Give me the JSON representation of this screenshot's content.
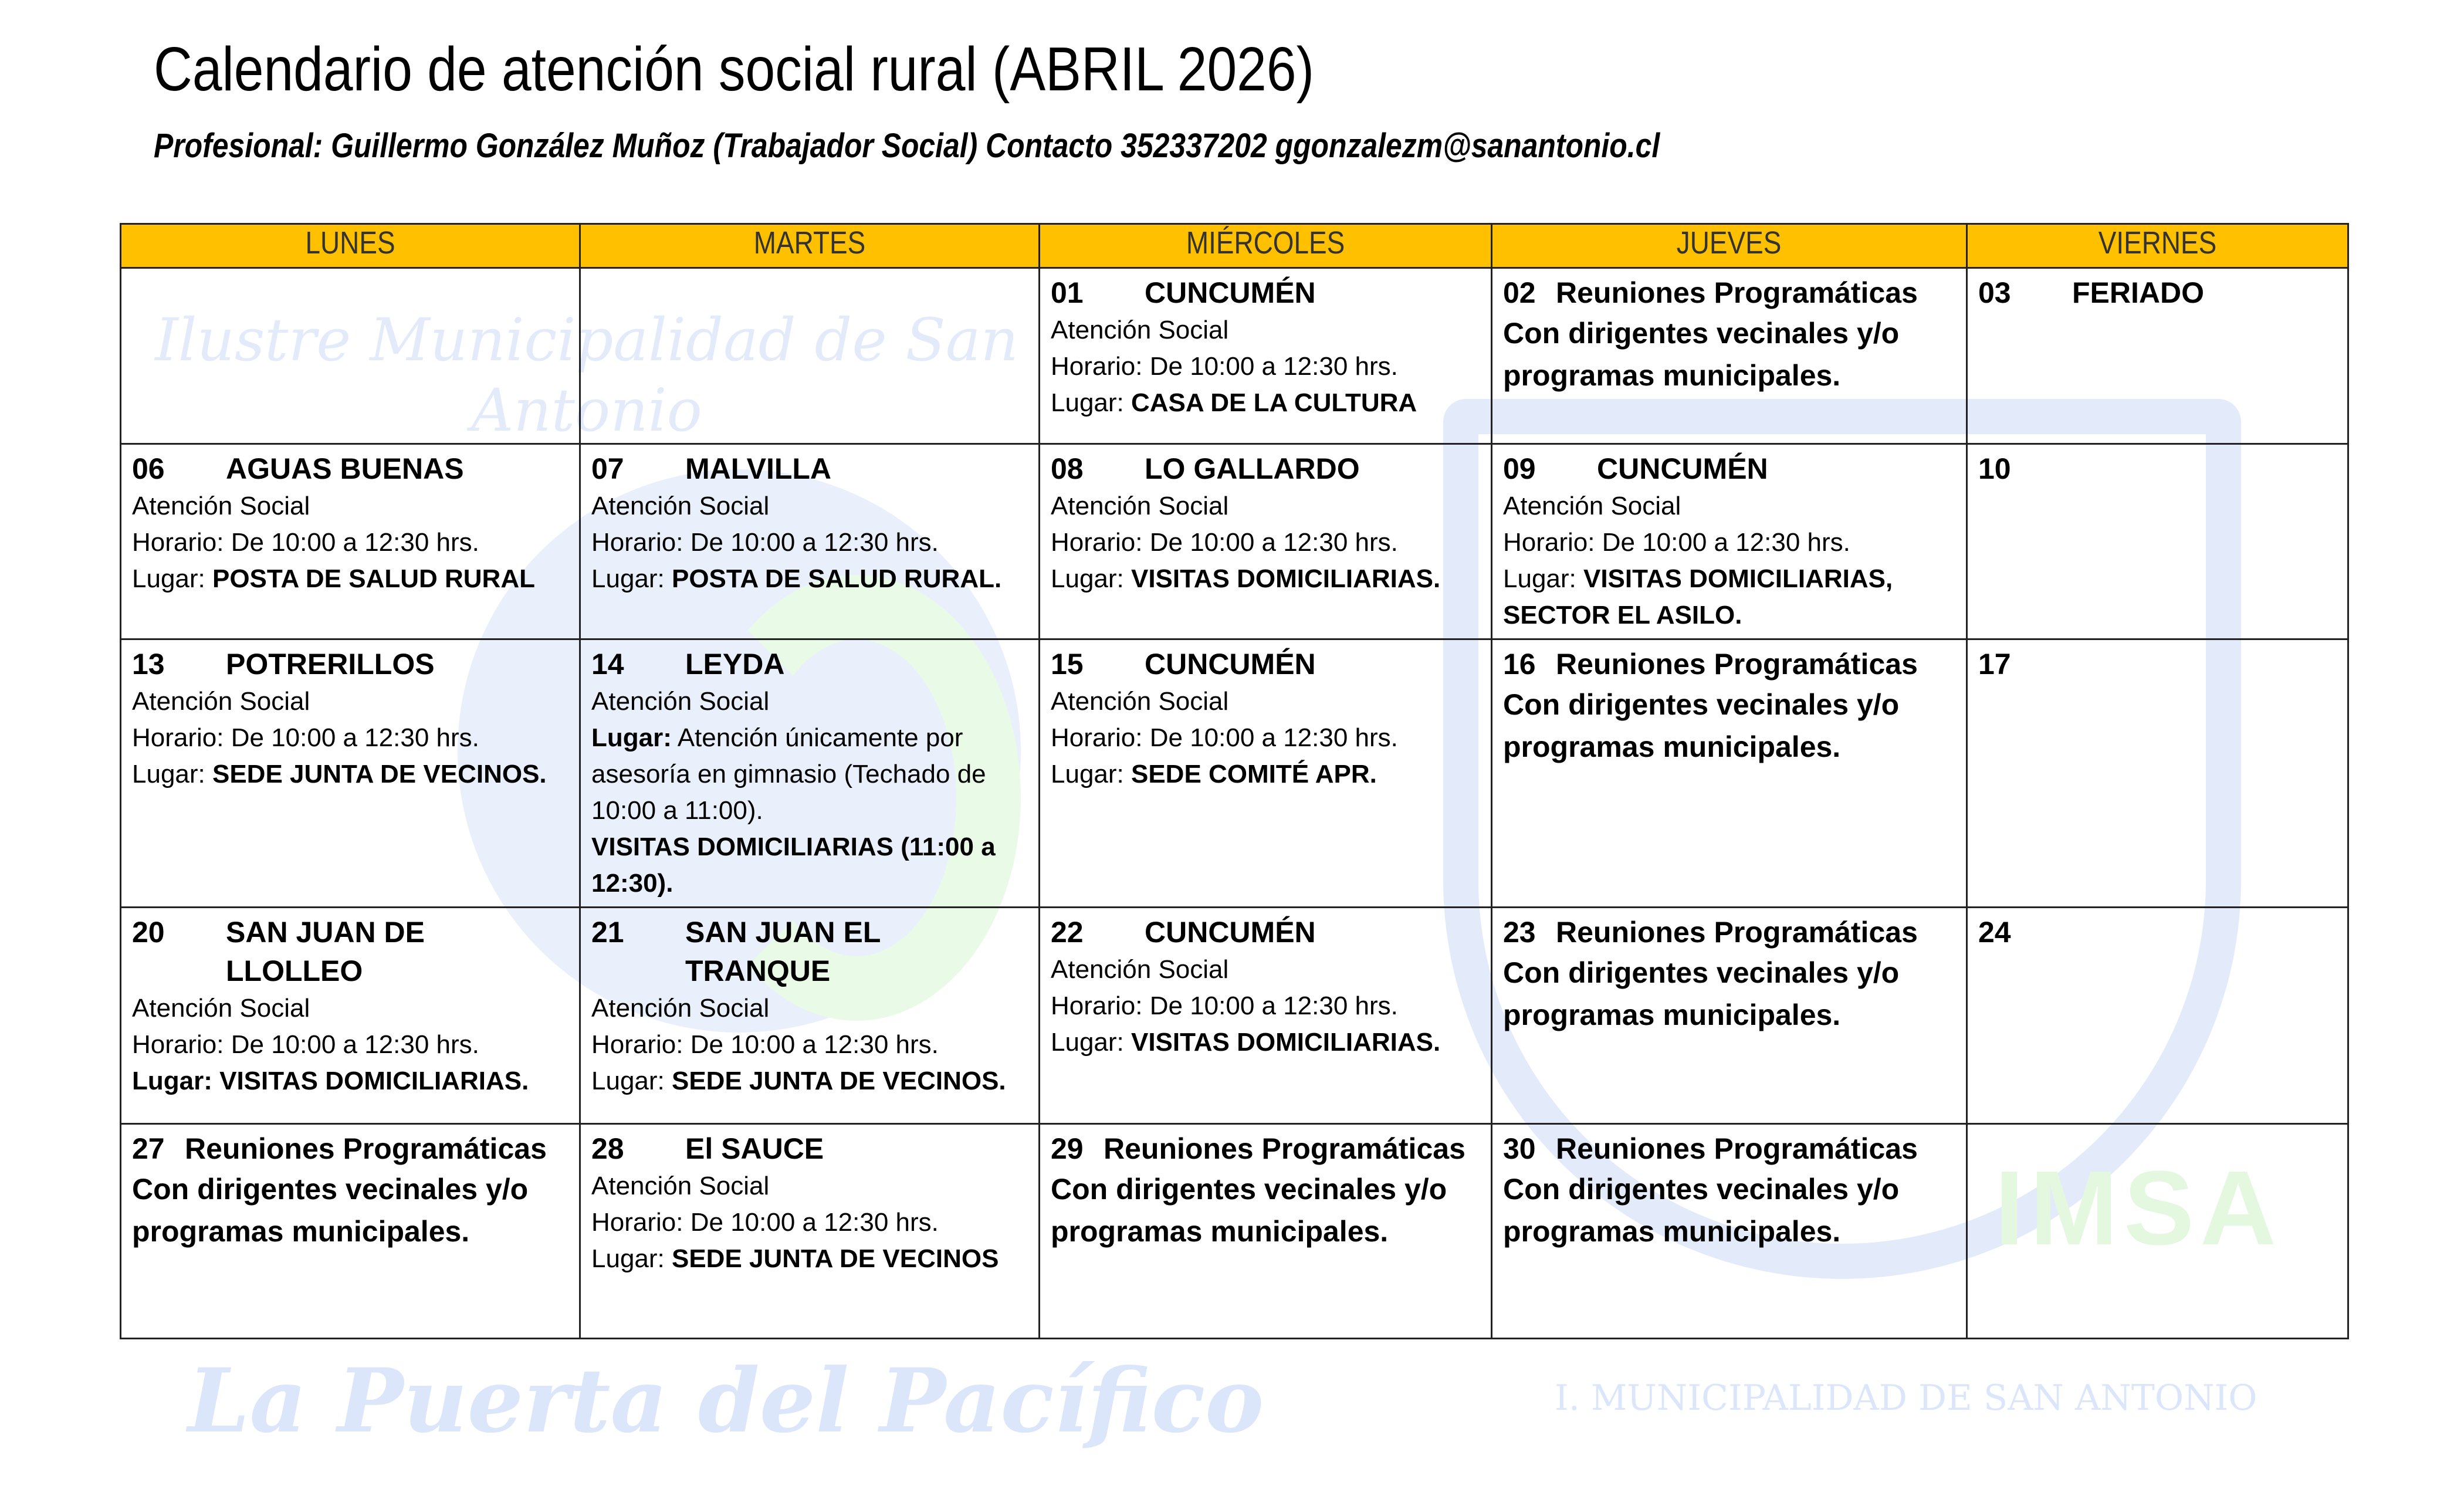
{
  "header": {
    "title": "Calendario de atención social rural (ABRIL 2026)",
    "subtitle": "Profesional: Guillermo González Muñoz (Trabajador Social) Contacto 352337202   ggonzalezm@sanantonio.cl"
  },
  "watermark": {
    "slogan": "La Puerta del Pacífico",
    "arc": "Ilustre Municipalidad de San Antonio",
    "ring": "I. MUNICIPALIDAD DE SAN ANTONIO",
    "logo": "IMSA"
  },
  "colors": {
    "header_bg": "#ffc000",
    "watermark": "#dbe6fb"
  },
  "days": [
    "LUNES",
    "MARTES",
    "MIÉRCOLES",
    "JUEVES",
    "VIERNES"
  ],
  "weeks": [
    [
      {},
      {},
      {
        "day": "01",
        "place": "CUNCUMÉN",
        "lines": [
          [
            {
              "t": "Atención Social"
            }
          ],
          [
            {
              "t": "Horario: De 10:00 a 12:30 hrs."
            }
          ],
          [
            {
              "t": "Lugar:  "
            },
            {
              "t": "CASA DE LA CULTURA",
              "b": true
            }
          ]
        ]
      },
      {
        "day": "02",
        "place": "Reuniones Programáticas",
        "meeting": "Con dirigentes vecinales y/o programas municipales."
      },
      {
        "day": "03",
        "place": "FERIADO"
      }
    ],
    [
      {
        "day": "06",
        "place": "AGUAS BUENAS",
        "lines": [
          [
            {
              "t": "Atención Social"
            }
          ],
          [
            {
              "t": "Horario: De 10:00 a 12:30 hrs."
            }
          ],
          [
            {
              "t": "Lugar: "
            },
            {
              "t": "POSTA DE SALUD RURAL",
              "b": true
            }
          ]
        ]
      },
      {
        "day": "07",
        "place": "MALVILLA",
        "lines": [
          [
            {
              "t": "Atención Social"
            }
          ],
          [
            {
              "t": "Horario: De 10:00 a 12:30 hrs."
            }
          ],
          [
            {
              "t": "Lugar: "
            },
            {
              "t": "POSTA DE SALUD RURAL.",
              "b": true
            }
          ]
        ]
      },
      {
        "day": "08",
        "place": "LO GALLARDO",
        "lines": [
          [
            {
              "t": "Atención Social"
            }
          ],
          [
            {
              "t": "Horario: De 10:00 a 12:30 hrs."
            }
          ],
          [
            {
              "t": "Lugar: "
            },
            {
              "t": "VISITAS DOMICILIARIAS.",
              "b": true
            }
          ]
        ]
      },
      {
        "day": "09",
        "place": "CUNCUMÉN",
        "lines": [
          [
            {
              "t": "Atención Social"
            }
          ],
          [
            {
              "t": "Horario: De 10:00 a 12:30 hrs."
            }
          ],
          [
            {
              "t": "Lugar: "
            },
            {
              "t": "VISITAS DOMICILIARIAS, SECTOR EL ASILO.",
              "b": true
            }
          ]
        ]
      },
      {
        "day": "10"
      }
    ],
    [
      {
        "day": "13",
        "place": "POTRERILLOS",
        "lines": [
          [
            {
              "t": "Atención Social"
            }
          ],
          [
            {
              "t": "Horario: De 10:00 a 12:30 hrs."
            }
          ],
          [
            {
              "t": "Lugar:  "
            },
            {
              "t": "SEDE JUNTA DE VECINOS.",
              "b": true
            }
          ]
        ]
      },
      {
        "day": "14",
        "place": "LEYDA",
        "lines": [
          [
            {
              "t": "Atención Social"
            }
          ],
          [
            {
              "t": "Lugar:",
              "b": true
            },
            {
              "t": " Atención únicamente por asesoría en gimnasio (Techado de 10:00 a 11:00)."
            }
          ],
          [
            {
              "t": "VISITAS DOMICILIARIAS (11:00 a 12:30).",
              "b": true
            }
          ]
        ]
      },
      {
        "day": "15",
        "place": "CUNCUMÉN",
        "lines": [
          [
            {
              "t": "Atención Social"
            }
          ],
          [
            {
              "t": "Horario: De 10:00 a 12:30 hrs."
            }
          ],
          [
            {
              "t": "Lugar: "
            },
            {
              "t": "SEDE COMITÉ APR.",
              "b": true
            }
          ]
        ]
      },
      {
        "day": "16",
        "place": "Reuniones Programáticas",
        "meeting": "Con dirigentes vecinales y/o programas municipales."
      },
      {
        "day": "17"
      }
    ],
    [
      {
        "day": "20",
        "place": "SAN JUAN DE LLOLLEO",
        "lines": [
          [
            {
              "t": "Atención Social"
            }
          ],
          [
            {
              "t": "Horario: De 10:00 a 12:30 hrs."
            }
          ],
          [
            {
              "t": "Lugar: VISITAS DOMICILIARIAS.",
              "b": true
            }
          ]
        ]
      },
      {
        "day": "21",
        "place": "SAN JUAN EL TRANQUE",
        "lines": [
          [
            {
              "t": "Atención Social"
            }
          ],
          [
            {
              "t": "Horario: De 10:00 a 12:30 hrs."
            }
          ],
          [
            {
              "t": "Lugar: "
            },
            {
              "t": "SEDE JUNTA DE VECINOS.",
              "b": true
            }
          ]
        ]
      },
      {
        "day": "22",
        "place": "CUNCUMÉN",
        "lines": [
          [
            {
              "t": "Atención Social"
            }
          ],
          [
            {
              "t": "Horario: De 10:00 a 12:30 hrs."
            }
          ],
          [
            {
              "t": "Lugar: "
            },
            {
              "t": "VISITAS DOMICILIARIAS.",
              "b": true
            }
          ]
        ]
      },
      {
        "day": "23",
        "place": "Reuniones Programáticas",
        "meeting": "Con dirigentes vecinales y/o programas municipales."
      },
      {
        "day": "24"
      }
    ],
    [
      {
        "day": "27",
        "place": "Reuniones Programáticas",
        "meeting": "Con dirigentes vecinales y/o programas municipales."
      },
      {
        "day": "28",
        "place": "El SAUCE",
        "lines": [
          [
            {
              "t": "Atención Social"
            }
          ],
          [
            {
              "t": "Horario: De 10:00 a 12:30 hrs."
            }
          ],
          [
            {
              "t": "Lugar: "
            },
            {
              "t": "SEDE JUNTA DE VECINOS",
              "b": true
            }
          ]
        ]
      },
      {
        "day": "29",
        "place": "Reuniones Programáticas",
        "meeting": "Con dirigentes vecinales y/o programas municipales."
      },
      {
        "day": "30",
        "place": "Reuniones Programáticas",
        "meeting": "Con dirigentes vecinales y/o programas municipales."
      },
      {}
    ]
  ]
}
